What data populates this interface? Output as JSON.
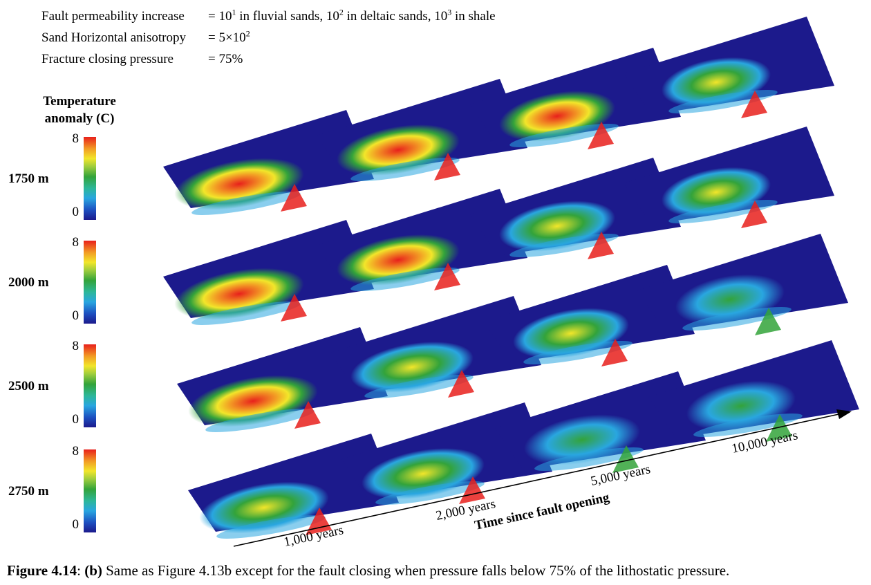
{
  "params": [
    {
      "label": "Fault permeability increase",
      "value": "= 10¹ in fluvial sands, 10² in deltaic sands, 10³ in shale"
    },
    {
      "label": "Sand Horizontal anisotropy",
      "value": "= 5×10²"
    },
    {
      "label": "Fracture closing pressure",
      "value": "= 75%"
    }
  ],
  "legend": {
    "title_line1": "Temperature",
    "title_line2": "anomaly (C)",
    "max_tick": "8",
    "min_tick": "0"
  },
  "depths": [
    "1750 m",
    "2000 m",
    "2500 m",
    "2750 m"
  ],
  "times": [
    "1,000 years",
    "2,000 years",
    "5,000 years",
    "10,000 years"
  ],
  "axis_title": "Time since fault opening",
  "caption": {
    "figure": "Figure 4.14",
    "panel": "(b)",
    "text": " Same as Figure 4.13b except for the fault closing when pressure falls below 75% of the lithostatic pressure."
  },
  "colors": {
    "low": "#1c1a8c",
    "mid": "#33a33a",
    "high": "#e8201c"
  }
}
